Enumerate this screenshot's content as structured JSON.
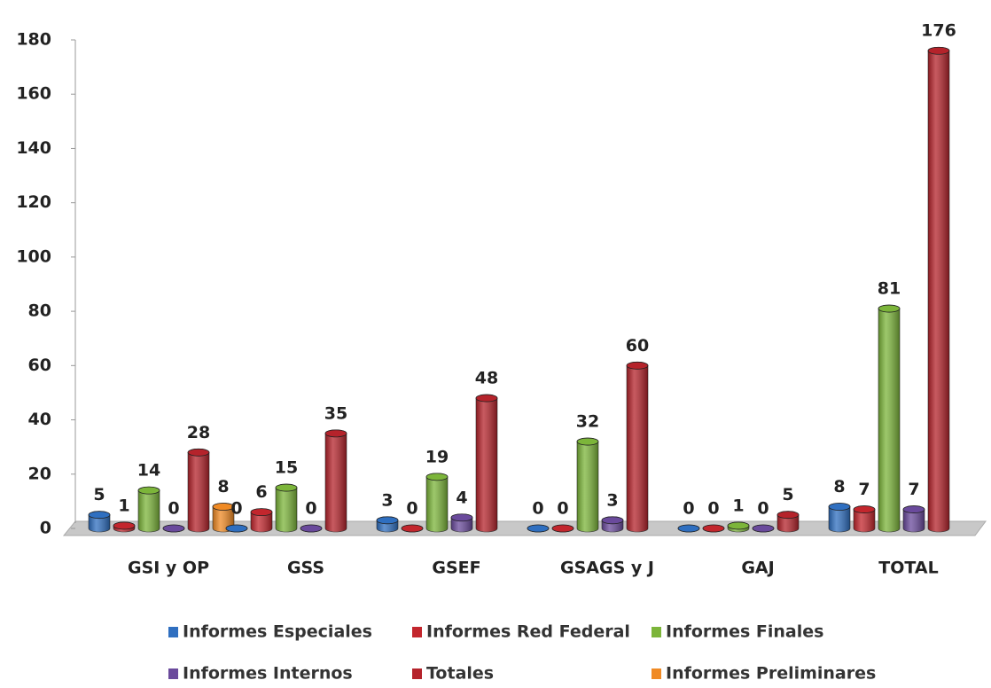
{
  "chart_data": {
    "type": "bar",
    "categories": [
      "GSI y OP",
      "GSS",
      "GSEF",
      "GSAGS y J",
      "GAJ",
      "TOTAL"
    ],
    "series": [
      {
        "name": "Informes Especiales",
        "color": "#2f6fc0",
        "values": [
          5,
          0,
          3,
          0,
          0,
          8
        ]
      },
      {
        "name": "Informes Red Federal",
        "color": "#c3262d",
        "values": [
          1,
          6,
          0,
          0,
          0,
          7
        ]
      },
      {
        "name": "Informes Finales",
        "color": "#7cb53a",
        "values": [
          14,
          15,
          19,
          32,
          1,
          81
        ]
      },
      {
        "name": "Informes Internos",
        "color": "#6a4a9c",
        "values": [
          0,
          0,
          4,
          3,
          0,
          7
        ]
      },
      {
        "name": "Totales",
        "color": "#b5232b",
        "values": [
          28,
          35,
          48,
          60,
          5,
          176
        ]
      },
      {
        "name": "Informes Preliminares",
        "color": "#f08a24",
        "values": [
          8,
          null,
          null,
          null,
          null,
          null
        ]
      }
    ],
    "ylim": [
      0,
      180
    ],
    "yticks": [
      0,
      20,
      40,
      60,
      80,
      100,
      120,
      140,
      160,
      180
    ],
    "grid": false
  }
}
